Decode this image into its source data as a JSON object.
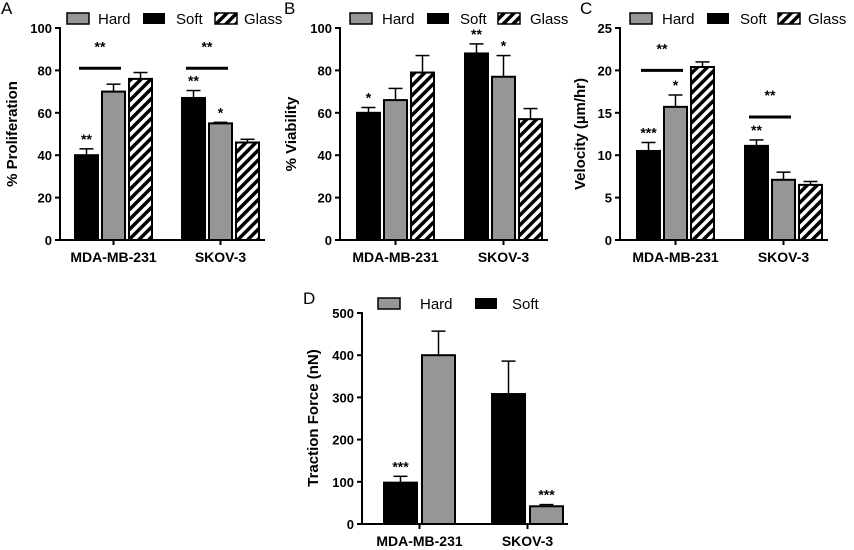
{
  "colors": {
    "hard": "#969696",
    "soft": "#000000",
    "glass_stripe": "#000000"
  },
  "chart_data": [
    {
      "panel": "A",
      "type": "bar",
      "ylabel": "% Proliferation",
      "ylim": [
        0,
        100
      ],
      "yticks": [
        0,
        20,
        40,
        60,
        80,
        100
      ],
      "categories": [
        "MDA-MB-231",
        "SKOV-3"
      ],
      "legend": [
        "Hard",
        "Soft",
        "Glass"
      ],
      "groups": [
        {
          "category": "MDA-MB-231",
          "bars": [
            {
              "series": "Soft",
              "value": 40,
              "err": 3,
              "label": "**"
            },
            {
              "series": "Hard",
              "value": 70,
              "err": 3.5,
              "label": ""
            },
            {
              "series": "Glass",
              "value": 76,
              "err": 3,
              "label": ""
            }
          ]
        },
        {
          "category": "SKOV-3",
          "bars": [
            {
              "series": "Soft",
              "value": 67,
              "err": 3.5,
              "label": "**"
            },
            {
              "series": "Hard",
              "value": 55,
              "err": 0.5,
              "label": "*"
            },
            {
              "series": "Glass",
              "value": 46,
              "err": 1.5,
              "label": ""
            }
          ]
        }
      ],
      "brackets": [
        {
          "group": 0,
          "from": 0,
          "to": 1,
          "value": 81,
          "label": "**"
        },
        {
          "group": 1,
          "from": 0,
          "to": 1,
          "value": 81,
          "label": "**"
        }
      ]
    },
    {
      "panel": "B",
      "type": "bar",
      "ylabel": "% Viability",
      "ylim": [
        0,
        100
      ],
      "yticks": [
        0,
        20,
        40,
        60,
        80,
        100
      ],
      "categories": [
        "MDA-MB-231",
        "SKOV-3"
      ],
      "legend": [
        "Hard",
        "Soft",
        "Glass"
      ],
      "groups": [
        {
          "category": "MDA-MB-231",
          "bars": [
            {
              "series": "Soft",
              "value": 60,
              "err": 2.5,
              "label": "*"
            },
            {
              "series": "Hard",
              "value": 66,
              "err": 5.5,
              "label": ""
            },
            {
              "series": "Glass",
              "value": 79,
              "err": 8,
              "label": ""
            }
          ]
        },
        {
          "category": "SKOV-3",
          "bars": [
            {
              "series": "Soft",
              "value": 88,
              "err": 4.5,
              "label": "**"
            },
            {
              "series": "Hard",
              "value": 77,
              "err": 10,
              "label": "*"
            },
            {
              "series": "Glass",
              "value": 57,
              "err": 5,
              "label": ""
            }
          ]
        }
      ],
      "brackets": []
    },
    {
      "panel": "C",
      "type": "bar",
      "ylabel": "Velocity (µm/hr)",
      "ylim": [
        0,
        25
      ],
      "yticks": [
        0,
        5,
        10,
        15,
        20,
        25
      ],
      "categories": [
        "MDA-MB-231",
        "SKOV-3"
      ],
      "legend": [
        "Hard",
        "Soft",
        "Glass"
      ],
      "groups": [
        {
          "category": "MDA-MB-231",
          "bars": [
            {
              "series": "Soft",
              "value": 10.5,
              "err": 1,
              "label": "***"
            },
            {
              "series": "Hard",
              "value": 15.7,
              "err": 1.4,
              "label": "*"
            },
            {
              "series": "Glass",
              "value": 20.4,
              "err": 0.6,
              "label": ""
            }
          ]
        },
        {
          "category": "SKOV-3",
          "bars": [
            {
              "series": "Soft",
              "value": 11.1,
              "err": 0.7,
              "label": "**"
            },
            {
              "series": "Hard",
              "value": 7.1,
              "err": 0.9,
              "label": ""
            },
            {
              "series": "Glass",
              "value": 6.5,
              "err": 0.4,
              "label": ""
            }
          ]
        }
      ],
      "brackets": [
        {
          "group": 0,
          "from": 0,
          "to": 1,
          "value": 20,
          "label": "**"
        },
        {
          "group": 1,
          "from": 0,
          "to": 1,
          "value": 14.5,
          "label": "**"
        }
      ]
    },
    {
      "panel": "D",
      "type": "bar",
      "ylabel": "Traction Force (nN)",
      "ylim": [
        0,
        500
      ],
      "yticks": [
        0,
        100,
        200,
        300,
        400,
        500
      ],
      "categories": [
        "MDA-MB-231",
        "SKOV-3"
      ],
      "legend": [
        "Hard",
        "Soft"
      ],
      "groups": [
        {
          "category": "MDA-MB-231",
          "bars": [
            {
              "series": "Soft",
              "value": 98,
              "err": 15,
              "label": "***"
            },
            {
              "series": "Hard",
              "value": 400,
              "err": 57,
              "label": ""
            }
          ]
        },
        {
          "category": "SKOV-3",
          "bars": [
            {
              "series": "Soft",
              "value": 308,
              "err": 78,
              "label": ""
            },
            {
              "series": "Hard",
              "value": 42,
              "err": 4,
              "label": "***"
            }
          ]
        }
      ],
      "brackets": []
    }
  ]
}
